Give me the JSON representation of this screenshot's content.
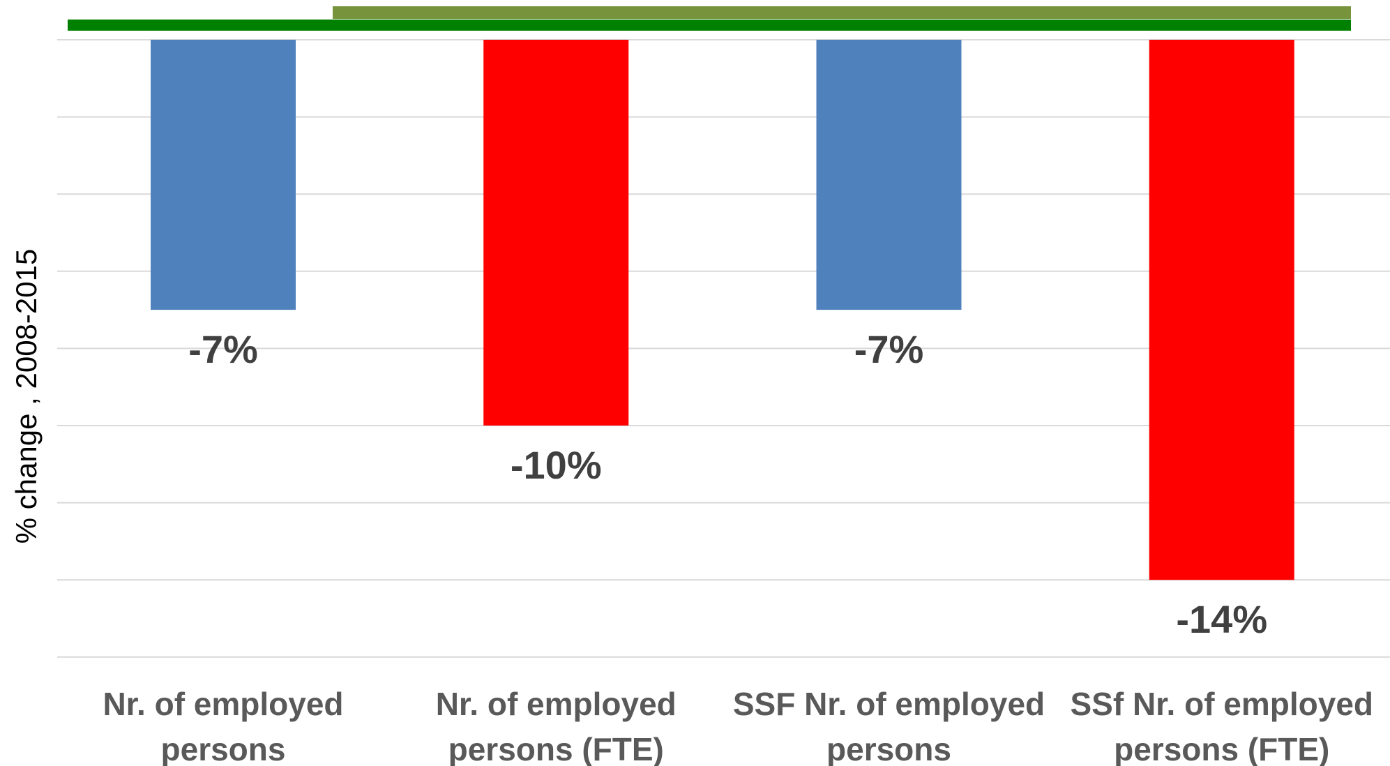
{
  "chart_data": {
    "type": "bar",
    "categories": [
      [
        "Nr. of employed",
        "persons"
      ],
      [
        "Nr. of employed",
        "persons (FTE)"
      ],
      [
        "SSF Nr. of employed",
        "persons"
      ],
      [
        "SSf Nr. of employed",
        "persons (FTE)"
      ]
    ],
    "values": [
      -7,
      -10,
      -7,
      -14
    ],
    "value_labels": [
      "-7%",
      "-10%",
      "-7%",
      "-14%"
    ],
    "bar_colors": [
      "#4F81BD",
      "#FF0000",
      "#4F81BD",
      "#FF0000"
    ],
    "ylabel": "% change , 2008-2015",
    "ylim": [
      -16,
      0
    ],
    "grid": true,
    "legend": "none",
    "decorations": {
      "top_band_colors": [
        "#77933C",
        "#008000"
      ]
    }
  }
}
